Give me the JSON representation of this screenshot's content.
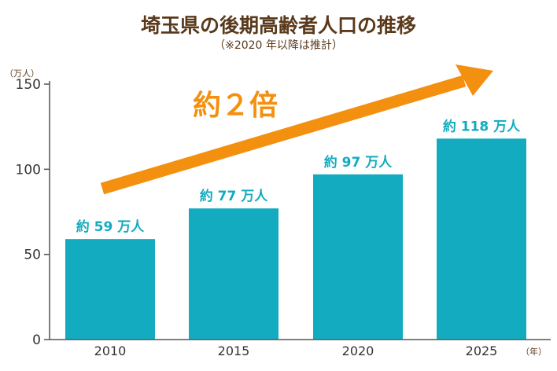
{
  "chart_data": {
    "type": "bar",
    "title": "埼玉県の後期高齢者人口の推移",
    "subtitle": "（※2020 年以降は推計）",
    "ylabel": "（万人）",
    "xlabel": "（年）",
    "categories": [
      "2010",
      "2015",
      "2020",
      "2025"
    ],
    "values": [
      59,
      77,
      97,
      118
    ],
    "data_labels": [
      "約 59 万人",
      "約 77 万人",
      "約 97 万人",
      "約 118 万人"
    ],
    "ylim": [
      0,
      150
    ],
    "yticks": [
      "0",
      "50",
      "100",
      "150"
    ],
    "grid": false,
    "annotation": "約２倍"
  },
  "colors": {
    "bar": "#12abbf",
    "label": "#12abbf",
    "arrow": "#f4900f",
    "title": "#5a3a1c",
    "axis": "#555555"
  }
}
